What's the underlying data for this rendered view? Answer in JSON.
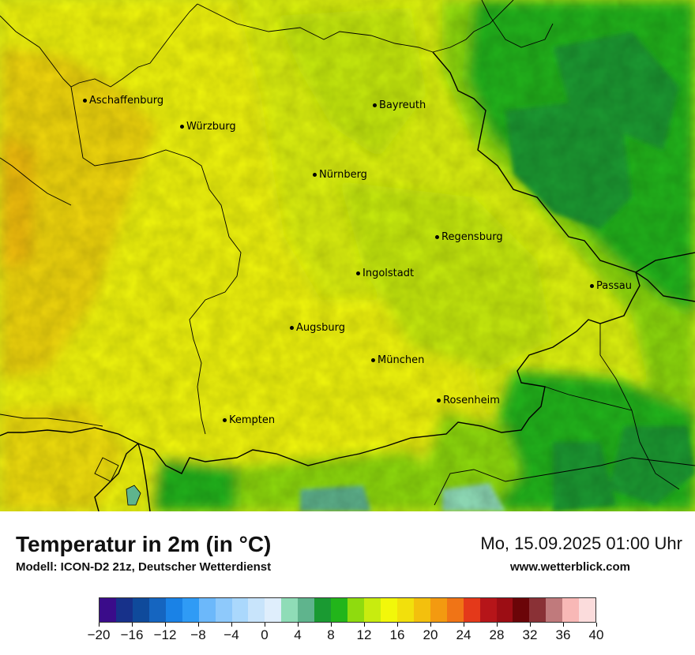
{
  "title": "Temperatur in 2m (in °C)",
  "model": "Modell: ICON-D2 21z, Deutscher Wetterdienst",
  "datetime": "Mo, 15.09.2025 01:00 Uhr",
  "website": "www.wetterblick.com",
  "cities": [
    {
      "name": "Aschaffenburg"
    },
    {
      "name": "Würzburg"
    },
    {
      "name": "Bayreuth"
    },
    {
      "name": "Nürnberg"
    },
    {
      "name": "Regensburg"
    },
    {
      "name": "Ingolstadt"
    },
    {
      "name": "Passau"
    },
    {
      "name": "Augsburg"
    },
    {
      "name": "München"
    },
    {
      "name": "Rosenheim"
    },
    {
      "name": "Kempten"
    }
  ],
  "legend": {
    "unit": "°C",
    "colors": [
      "#3a0c8a",
      "#17318a",
      "#0f4a9b",
      "#1565c0",
      "#1a82e6",
      "#2f9bf5",
      "#6cb8fa",
      "#8ec9fb",
      "#aad8fc",
      "#c8e4fb",
      "#dfeefc",
      "#8fdcb7",
      "#5fb48d",
      "#1a9a32",
      "#22b51a",
      "#8fdb0e",
      "#c8ec0f",
      "#f2f70a",
      "#f2e00c",
      "#f3c00d",
      "#f39a10",
      "#f07416",
      "#e4391a",
      "#b61519",
      "#9c0d14",
      "#6b0508",
      "#8a3136",
      "#c07a7c",
      "#f8b8b6",
      "#fbdcdc"
    ],
    "ticks": [
      "−20",
      "−16",
      "−12",
      "−8",
      "−4",
      "0",
      "4",
      "8",
      "12",
      "16",
      "20",
      "24",
      "28",
      "32",
      "36",
      "40"
    ]
  }
}
